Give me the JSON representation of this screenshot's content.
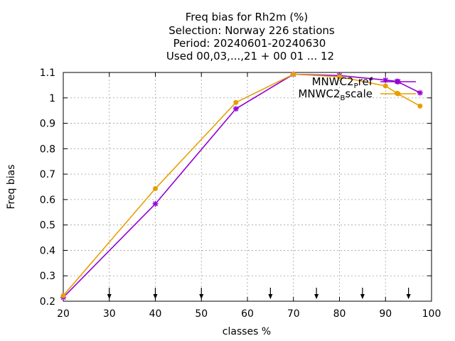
{
  "chart_data": {
    "type": "line",
    "title_lines": [
      "Freq bias  for Rh2m (%)",
      "Selection: Norway    226 stations",
      "Period: 20240601-20240630",
      "Used 00,03,...,21 + 00 01 ... 12"
    ],
    "xlabel": "classes %",
    "ylabel": "Freq bias",
    "xlim": [
      20,
      100
    ],
    "ylim": [
      0.2,
      1.1
    ],
    "xticks": [
      "20",
      "30",
      "40",
      "50",
      "60",
      "70",
      "80",
      "90",
      "100"
    ],
    "yticks": [
      "0.2",
      "0.3",
      "0.4",
      "0.5",
      "0.6",
      "0.7",
      "0.8",
      "0.9",
      "1",
      "1.1"
    ],
    "grid": true,
    "legend_position": "top-right",
    "arrow_markers_x": [
      30,
      40,
      50,
      65,
      75,
      85,
      95
    ],
    "series": [
      {
        "legend_main": "MNWC2",
        "legend_sub": "P",
        "legend_tail": "ref",
        "color": "#9400d3",
        "marker": "star",
        "points": [
          [
            20,
            0.215
          ],
          [
            40,
            0.583
          ],
          [
            57.5,
            0.957
          ],
          [
            70,
            1.093
          ],
          [
            80,
            1.088
          ],
          [
            90,
            1.07
          ],
          [
            92.5,
            1.065
          ],
          [
            97.5,
            1.02
          ]
        ]
      },
      {
        "legend_main": "MNWC2",
        "legend_sub": "B",
        "legend_tail": "scale",
        "color": "#e69f00",
        "marker": "circle",
        "points": [
          [
            20,
            0.222
          ],
          [
            40,
            0.643
          ],
          [
            57.5,
            0.982
          ],
          [
            70,
            1.093
          ],
          [
            80,
            1.083
          ],
          [
            90,
            1.047
          ],
          [
            92.5,
            1.018
          ],
          [
            97.5,
            0.968
          ]
        ]
      }
    ]
  }
}
